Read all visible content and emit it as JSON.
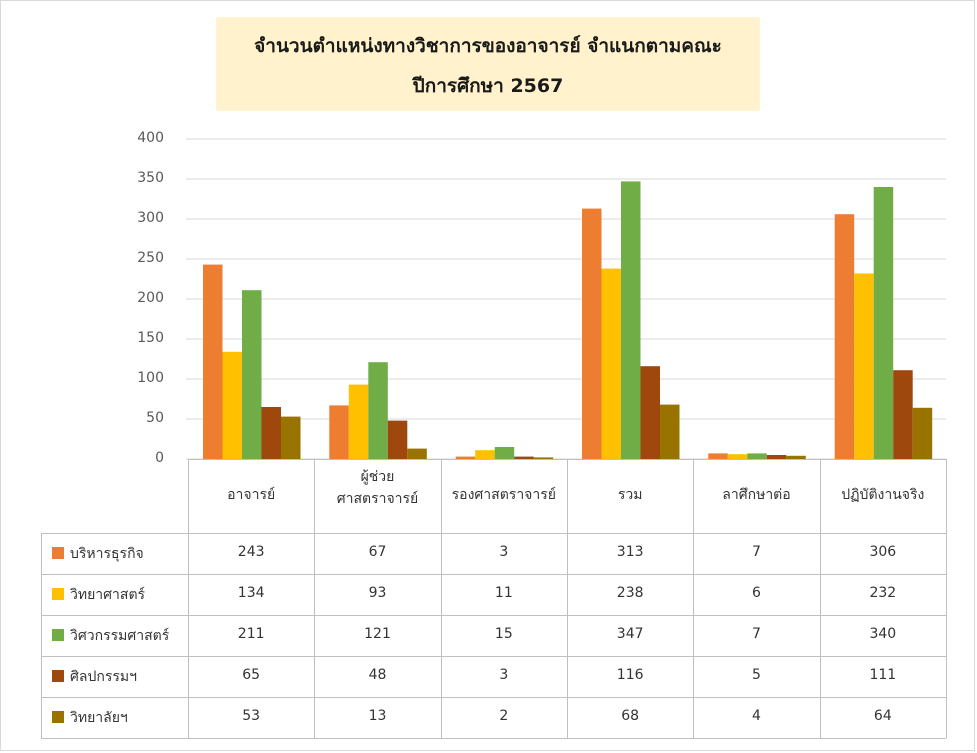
{
  "chart_data": {
    "type": "bar",
    "title_line1": "จำนวนตำแหน่งทางวิชาการของอาจารย์ จำแนกตามคณะ",
    "title_line2": "ปีการศึกษา 2567",
    "categories": [
      "อาจารย์",
      "ผู้ช่วย\nศาสตราจารย์",
      "รองศาสตราจารย์",
      "รวม",
      "ลาศึกษาต่อ",
      "ปฏิบัติงานจริง"
    ],
    "series": [
      {
        "name": "บริหารธุรกิจ",
        "color": "#ed7d31",
        "values": [
          243,
          67,
          3,
          313,
          7,
          306
        ]
      },
      {
        "name": "วิทยาศาสตร์",
        "color": "#ffc000",
        "values": [
          134,
          93,
          11,
          238,
          6,
          232
        ]
      },
      {
        "name": "วิศวกรรมศาสตร์",
        "color": "#70ad47",
        "values": [
          211,
          121,
          15,
          347,
          7,
          340
        ]
      },
      {
        "name": "ศิลปกรรมฯ",
        "color": "#9e480e",
        "values": [
          65,
          48,
          3,
          116,
          5,
          111
        ]
      },
      {
        "name": "วิทยาลัยฯ",
        "color": "#997300",
        "values": [
          53,
          13,
          2,
          68,
          4,
          64
        ]
      }
    ],
    "yticks": [
      0,
      50,
      100,
      150,
      200,
      250,
      300,
      350,
      400
    ],
    "ylim": [
      0,
      400
    ],
    "grid": true,
    "legend": "data-table"
  }
}
